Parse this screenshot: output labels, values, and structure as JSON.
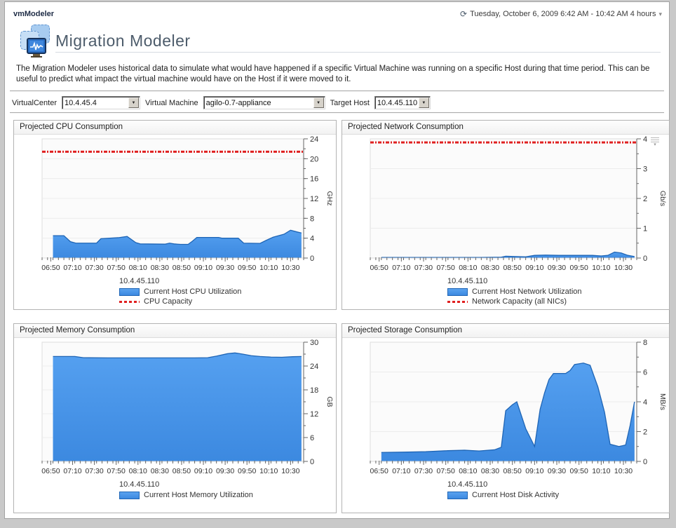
{
  "window": {
    "app_title": "vmModeler",
    "date_range": "Tuesday, October 6, 2009 6:42 AM - 10:42 AM 4 hours"
  },
  "header": {
    "page_title": "Migration Modeler",
    "description": "The Migration Modeler uses historical data to simulate what would have happened if a specific Virtual Machine was running on a specific Host during that time period. This can be useful to predict what impact the virtual machine would have on the Host if it were moved to it."
  },
  "filters": [
    {
      "label": "VirtualCenter",
      "value": "10.4.45.4"
    },
    {
      "label": "Virtual Machine",
      "value": "agilo-0.7-appliance"
    },
    {
      "label": "Target Host",
      "value": "10.4.45.110"
    }
  ],
  "colors": {
    "series_fill_top": "#55a0f0",
    "series_fill_bottom": "#3c89e0",
    "series_stroke": "#1f65b5",
    "capacity_red": "#e02020",
    "plot_bg": "#fbfbfb",
    "plot_border": "#dcdcdc",
    "grid": "#ececec",
    "axis": "#666666",
    "tick_text": "#333333"
  },
  "chart_data": [
    {
      "type": "area",
      "title": "Projected CPU Consumption",
      "ylabel": "GHz",
      "ylim": [
        0,
        24
      ],
      "yticks": [
        0,
        4,
        8,
        12,
        16,
        20,
        24
      ],
      "y_minor_step": 2,
      "x_total_min": 240,
      "xticks": {
        "labels": [
          "06:50",
          "07:10",
          "07:30",
          "07:50",
          "08:10",
          "08:30",
          "08:50",
          "09:10",
          "09:30",
          "09:50",
          "10:10",
          "10:30"
        ],
        "first_min": 8,
        "step_min": 20
      },
      "host": "10.4.45.110",
      "series": [
        {
          "name": "Current Host CPU Utilization",
          "points": [
            [
              10,
              4.5
            ],
            [
              20,
              4.5
            ],
            [
              26,
              3.3
            ],
            [
              31,
              3.0
            ],
            [
              50,
              3.0
            ],
            [
              54,
              3.9
            ],
            [
              62,
              4.0
            ],
            [
              70,
              4.1
            ],
            [
              78,
              4.35
            ],
            [
              86,
              3.1
            ],
            [
              90,
              2.85
            ],
            [
              113,
              2.8
            ],
            [
              117,
              3.0
            ],
            [
              121,
              2.85
            ],
            [
              127,
              2.75
            ],
            [
              134,
              2.75
            ],
            [
              138,
              3.4
            ],
            [
              142,
              4.15
            ],
            [
              162,
              4.15
            ],
            [
              165,
              4.0
            ],
            [
              180,
              4.0
            ],
            [
              185,
              3.0
            ],
            [
              200,
              2.95
            ],
            [
              206,
              3.6
            ],
            [
              212,
              4.2
            ],
            [
              222,
              4.8
            ],
            [
              228,
              5.6
            ],
            [
              234,
              5.25
            ],
            [
              238,
              5.05
            ]
          ]
        }
      ],
      "capacity": {
        "name": "CPU Capacity",
        "value": 21.4
      },
      "has_menu_icon": false
    },
    {
      "type": "area",
      "title": "Projected Network Consumption",
      "ylabel": "Gb/s",
      "ylim": [
        0,
        4
      ],
      "yticks": [
        0,
        1,
        2,
        3,
        4
      ],
      "y_minor_step": 0.5,
      "x_total_min": 240,
      "xticks": {
        "labels": [
          "06:50",
          "07:10",
          "07:30",
          "07:50",
          "08:10",
          "08:30",
          "08:50",
          "09:10",
          "09:30",
          "09:50",
          "10:10",
          "10:30"
        ],
        "first_min": 8,
        "step_min": 20
      },
      "host": "10.4.45.110",
      "series": [
        {
          "name": "Current Host Network Utilization",
          "points": [
            [
              10,
              0.02
            ],
            [
              100,
              0.02
            ],
            [
              118,
              0.03
            ],
            [
              122,
              0.06
            ],
            [
              132,
              0.05
            ],
            [
              140,
              0.04
            ],
            [
              148,
              0.09
            ],
            [
              158,
              0.1
            ],
            [
              170,
              0.09
            ],
            [
              185,
              0.09
            ],
            [
              200,
              0.09
            ],
            [
              208,
              0.07
            ],
            [
              214,
              0.09
            ],
            [
              220,
              0.2
            ],
            [
              226,
              0.17
            ],
            [
              232,
              0.09
            ],
            [
              238,
              0.05
            ]
          ]
        }
      ],
      "capacity": {
        "name": "Network Capacity (all NICs)",
        "value": 3.88
      },
      "has_menu_icon": true
    },
    {
      "type": "area",
      "title": "Projected Memory Consumption",
      "ylabel": "GB",
      "ylim": [
        0,
        30
      ],
      "yticks": [
        0,
        6,
        12,
        18,
        24,
        30
      ],
      "y_minor_step": 3,
      "x_total_min": 240,
      "xticks": {
        "labels": [
          "06:50",
          "07:10",
          "07:30",
          "07:50",
          "08:10",
          "08:30",
          "08:50",
          "09:10",
          "09:30",
          "09:50",
          "10:10",
          "10:30"
        ],
        "first_min": 8,
        "step_min": 20
      },
      "host": "10.4.45.110",
      "series": [
        {
          "name": "Current Host Memory Utilization",
          "points": [
            [
              10,
              26.4
            ],
            [
              30,
              26.4
            ],
            [
              38,
              26.1
            ],
            [
              60,
              26.05
            ],
            [
              100,
              26.05
            ],
            [
              140,
              26.05
            ],
            [
              152,
              26.1
            ],
            [
              160,
              26.5
            ],
            [
              170,
              27.1
            ],
            [
              177,
              27.3
            ],
            [
              184,
              27.0
            ],
            [
              192,
              26.6
            ],
            [
              200,
              26.4
            ],
            [
              210,
              26.25
            ],
            [
              220,
              26.2
            ],
            [
              230,
              26.35
            ],
            [
              238,
              26.4
            ]
          ]
        }
      ],
      "capacity": null,
      "has_menu_icon": false
    },
    {
      "type": "area",
      "title": "Projected Storage Consumption",
      "ylabel": "MB/s",
      "ylim": [
        0,
        8
      ],
      "yticks": [
        0,
        2,
        4,
        6,
        8
      ],
      "y_minor_step": 1,
      "x_total_min": 240,
      "xticks": {
        "labels": [
          "06:50",
          "07:10",
          "07:30",
          "07:50",
          "08:10",
          "08:30",
          "08:50",
          "09:10",
          "09:30",
          "09:50",
          "10:10",
          "10:30"
        ],
        "first_min": 8,
        "step_min": 20
      },
      "host": "10.4.45.110",
      "series": [
        {
          "name": "Current Host Disk Activity",
          "points": [
            [
              10,
              0.6
            ],
            [
              30,
              0.62
            ],
            [
              50,
              0.65
            ],
            [
              70,
              0.72
            ],
            [
              85,
              0.75
            ],
            [
              98,
              0.7
            ],
            [
              112,
              0.78
            ],
            [
              118,
              0.95
            ],
            [
              122,
              3.4
            ],
            [
              128,
              3.8
            ],
            [
              132,
              4.0
            ],
            [
              140,
              2.2
            ],
            [
              148,
              1.0
            ],
            [
              153,
              3.5
            ],
            [
              157,
              4.6
            ],
            [
              161,
              5.5
            ],
            [
              165,
              5.9
            ],
            [
              176,
              5.9
            ],
            [
              180,
              6.1
            ],
            [
              184,
              6.5
            ],
            [
              192,
              6.6
            ],
            [
              198,
              6.45
            ],
            [
              205,
              5.0
            ],
            [
              211,
              3.3
            ],
            [
              216,
              1.15
            ],
            [
              224,
              1.0
            ],
            [
              230,
              1.1
            ],
            [
              234,
              2.4
            ],
            [
              238,
              4.0
            ]
          ]
        }
      ],
      "capacity": null,
      "has_menu_icon": false
    }
  ],
  "icons": {
    "clock": "⟳",
    "caret_down": "▾",
    "combo_arrow": "▼"
  }
}
